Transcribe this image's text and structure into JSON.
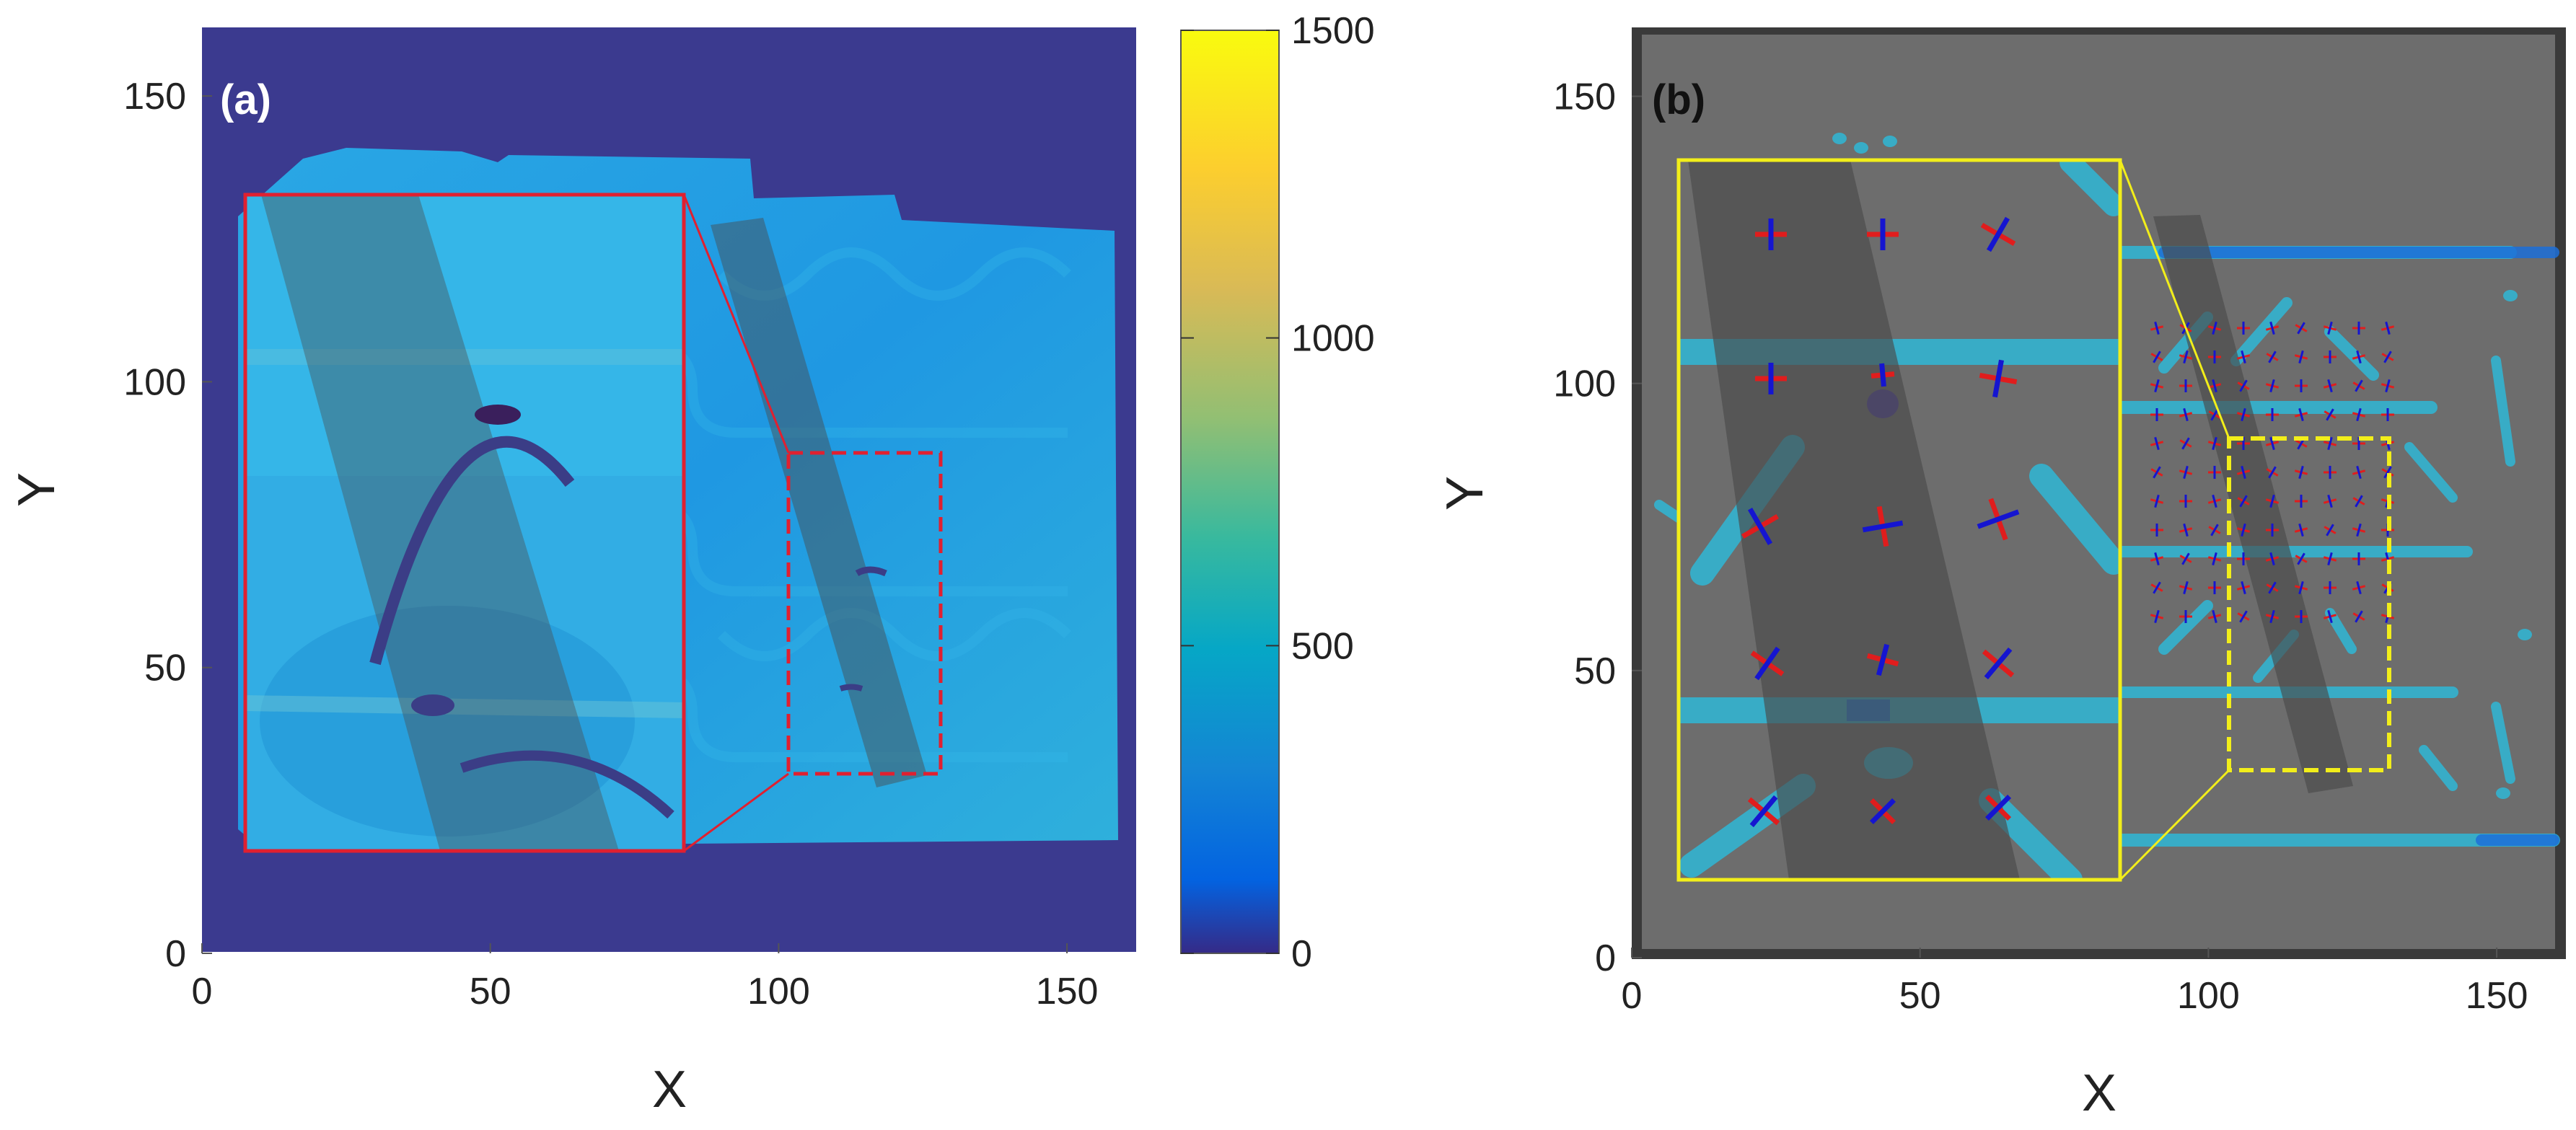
{
  "colors": {
    "panel_a_background": "#3b3a8f",
    "panel_a_field": "#1f9be6",
    "panel_a_field_light": "#35b6e8",
    "panel_a_channel_dark": "#3b3d86",
    "panel_a_inset_border": "#e02030",
    "panel_b_background": "#6d6d6d",
    "panel_b_border": "#3a3a3a",
    "panel_b_rods": "#2fb7d6",
    "panel_b_rods_dark": "#1d6fd8",
    "panel_b_inset_border": "#f2ee1a",
    "cross_red": "#e01d1d",
    "cross_blue": "#1515d0",
    "scan_band": "#4a4a4a"
  },
  "colorbar": {
    "ticks": [
      "0",
      "500",
      "1000",
      "1500"
    ],
    "min": 0,
    "max": 1500,
    "colormap": "parula"
  },
  "chart_data": [
    {
      "type": "heatmap",
      "panel_label": "(a)",
      "xlabel": "X",
      "ylabel": "Y",
      "xlim": [
        0,
        162
      ],
      "ylim": [
        0,
        162
      ],
      "xticks": [
        "0",
        "50",
        "100",
        "150"
      ],
      "yticks": [
        "0",
        "50",
        "100",
        "150"
      ],
      "grid": false,
      "zoom_region": {
        "x": [
          104,
          131
        ],
        "y": [
          32,
          90
        ]
      },
      "inset_extent": {
        "x": [
          8,
          86
        ],
        "y": [
          18,
          135
        ]
      },
      "colorbar_range": [
        0,
        1500
      ]
    },
    {
      "type": "scatter",
      "panel_label": "(b)",
      "xlabel": "X",
      "ylabel": "Y",
      "xlim": [
        0,
        162
      ],
      "ylim": [
        0,
        162
      ],
      "xticks": [
        "0",
        "50",
        "100",
        "150"
      ],
      "yticks": [
        "0",
        "50",
        "100",
        "150"
      ],
      "grid": false,
      "zoom_region": {
        "x": [
          104,
          133
        ],
        "y": [
          33,
          92
        ]
      },
      "inset_extent": {
        "x": [
          8,
          86
        ],
        "y": [
          13,
          140
        ]
      }
    }
  ]
}
